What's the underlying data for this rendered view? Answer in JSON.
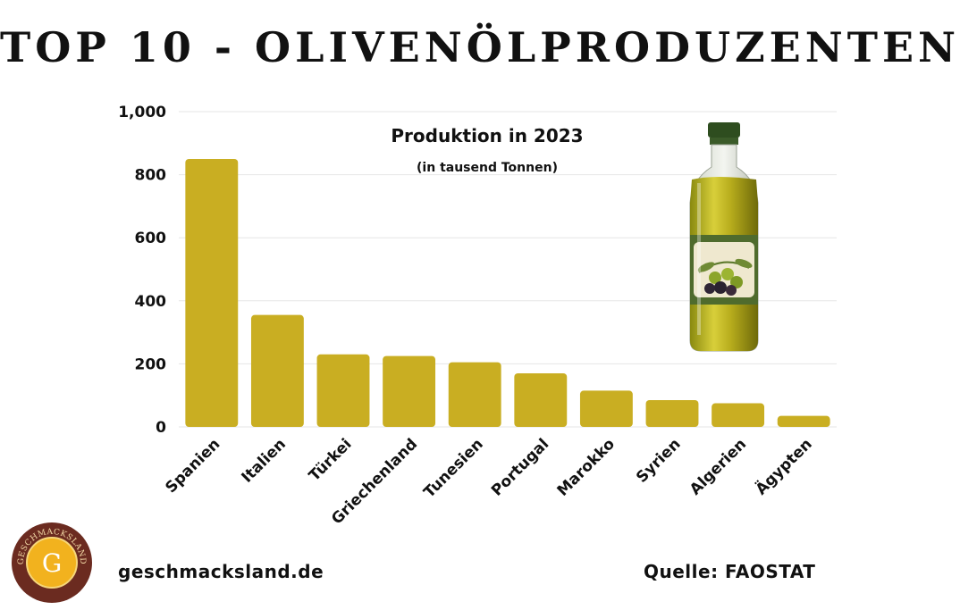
{
  "title": "TOP 10 - OLIVENÖLPRODUZENTEN",
  "logo_text": "GESCHMACKSLAND",
  "logo_initial": "G",
  "website": "geschmacksland.de",
  "source": "Quelle: FAOSTAT",
  "colors": {
    "bar": "#c9ae22",
    "logo_ring": "#6b2b20",
    "logo_center": "#f2b21e",
    "bottle_label": "#4f6b2d"
  },
  "icons": {
    "bottle": "olive-oil-bottle-icon",
    "logo": "geschmacksland-logo"
  },
  "chart_data": {
    "type": "bar",
    "title": "Produktion in 2023",
    "subtitle": "(in tausend Tonnen)",
    "xlabel": "",
    "ylabel": "",
    "categories": [
      "Spanien",
      "Italien",
      "Türkei",
      "Griechenland",
      "Tunesien",
      "Portugal",
      "Marokko",
      "Syrien",
      "Algerien",
      "Ägypten"
    ],
    "values": [
      850,
      355,
      230,
      225,
      205,
      170,
      115,
      85,
      75,
      35
    ],
    "ylim": [
      0,
      1000
    ],
    "yticks": [
      0,
      200,
      400,
      600,
      800,
      1000
    ],
    "ytick_labels": [
      "0",
      "200",
      "400",
      "600",
      "800",
      "1,000"
    ],
    "grid": true,
    "legend": "none"
  }
}
